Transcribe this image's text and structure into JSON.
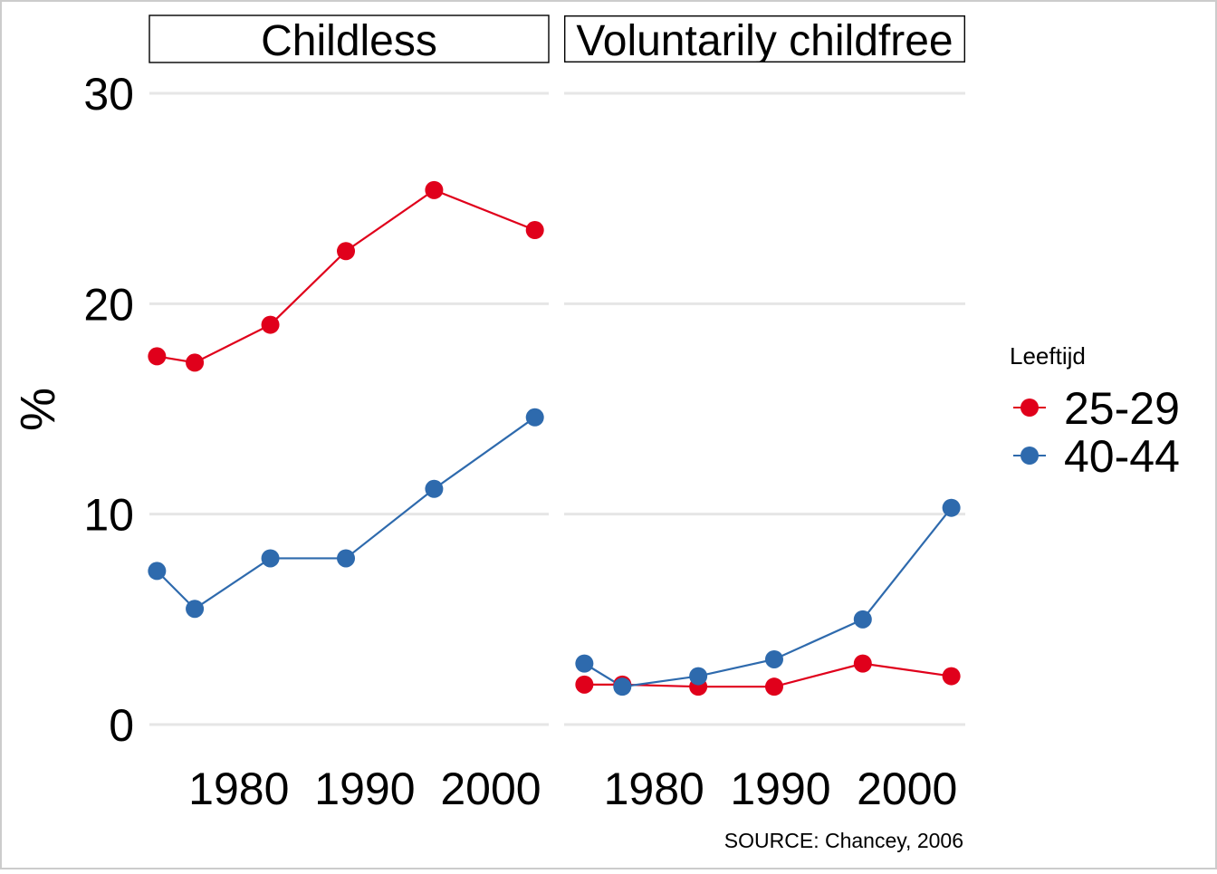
{
  "chart_data": {
    "type": "line",
    "ylabel": "%",
    "ylim": [
      0,
      30
    ],
    "y_ticks": [
      "0",
      "10",
      "20",
      "30"
    ],
    "x_ticks": [
      1980,
      1990,
      2000
    ],
    "xlim": [
      1972.9,
      2004.6
    ],
    "grid": "horizontal",
    "legend": {
      "title": "Leeftijd",
      "placement": "right",
      "items": [
        {
          "label": "25-29",
          "color": "#e0001b"
        },
        {
          "label": "40-44",
          "color": "#2e6aad"
        }
      ]
    },
    "caption": "SOURCE: Chancey, 2006",
    "panels": [
      {
        "title": "Childless",
        "series": [
          {
            "name": "25-29",
            "color": "#e0001b",
            "x": [
              1973.5,
              1976.5,
              1982.5,
              1988.5,
              1995.5,
              2003.5
            ],
            "y": [
              17.5,
              17.2,
              19.0,
              22.5,
              25.4,
              23.5
            ]
          },
          {
            "name": "40-44",
            "color": "#2e6aad",
            "x": [
              1973.5,
              1976.5,
              1982.5,
              1988.5,
              1995.5,
              2003.5
            ],
            "y": [
              7.3,
              5.5,
              7.9,
              7.9,
              11.2,
              14.6
            ]
          }
        ]
      },
      {
        "title": "Voluntarily childfree",
        "series": [
          {
            "name": "25-29",
            "color": "#e0001b",
            "x": [
              1974.5,
              1977.5,
              1983.5,
              1989.5,
              1996.5,
              2003.5
            ],
            "y": [
              1.9,
              1.9,
              1.8,
              1.8,
              2.9,
              2.3
            ]
          },
          {
            "name": "40-44",
            "color": "#2e6aad",
            "x": [
              1974.5,
              1977.5,
              1983.5,
              1989.5,
              1996.5,
              2003.5
            ],
            "y": [
              2.9,
              1.8,
              2.3,
              3.1,
              5.0,
              10.3
            ]
          }
        ]
      }
    ]
  }
}
